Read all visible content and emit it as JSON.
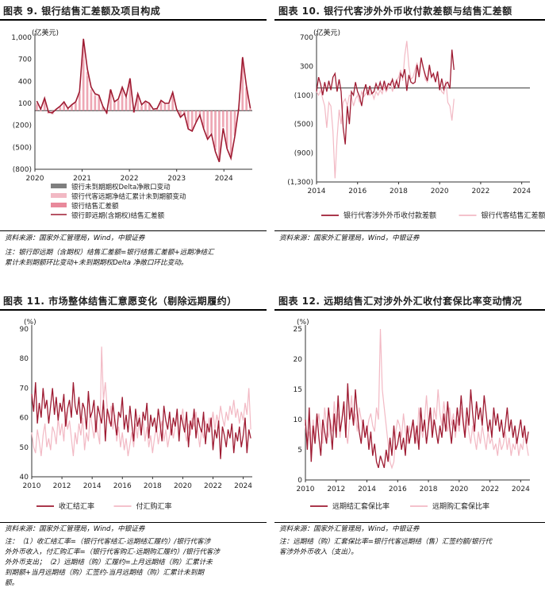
{
  "panels": {
    "p9": {
      "title": "图表 9. 银行结售汇差额及项目构成"
    },
    "p10": {
      "title": "图表 10. 银行代客涉外外币收付款差额与结售汇差额"
    },
    "p11": {
      "title": "图表 11. 市场整体结售汇意愿变化（剔除远期履约）"
    },
    "p12": {
      "title": "图表 12. 远期结售汇对涉外外汇收付套保比率变动情况"
    }
  },
  "notes": {
    "p9_source": "资料来源：国家外汇管理局，Wind，中银证券",
    "p9_note_1": "注：银行即远期（含期权）结售汇差额=银行结售汇差额+远期净结汇",
    "p9_note_2": "累计未到期额环比变动+未到期期权Delta 净敞口环比变动。",
    "p10_source": "资料来源：国家外汇管理局，Wind，中银证券",
    "p11_source": "资料来源：国家外汇管理局，Wind，中银证券",
    "p11_note_1": "注：（1）收汇结汇率=（银行代客结汇-远期结汇履约）/银行代客涉",
    "p11_note_2": "外外币收入，付汇购汇率=（银行代客购汇-远期购汇履约）/银行代客涉",
    "p11_note_3": "外外币支出；（2）远期结（购）汇履约=上月远期结（购）汇累计未",
    "p11_note_4": "到期额+当月远期结（购）汇签约-当月远期结（购）汇累计未到期",
    "p11_note_5": "额。",
    "p12_source": "资料来源：国家外汇管理局，Wind，中银证券",
    "p12_note_1": "注：远期结（购）汇套保比率=银行代客远期结（售）汇签约额/银行代",
    "p12_note_2": "客涉外外币收入（支出）。"
  },
  "chart_data": [
    {
      "id": "chart9",
      "type": "bar",
      "unit": "(亿美元)",
      "ylim": [
        -800,
        1000
      ],
      "yticks": [
        "1,000",
        "700",
        "400",
        "100",
        "(200)",
        "(500)",
        "(800)"
      ],
      "ytick_values": [
        1000,
        700,
        400,
        100,
        -200,
        -500,
        -800
      ],
      "xticks": [
        "2020",
        "2021",
        "2022",
        "2023",
        "2024"
      ],
      "xtick_values": [
        2020,
        2021,
        2022,
        2023,
        2024
      ],
      "x_start": 2020.0,
      "x_end": 2024.6,
      "legend": [
        "银行未到期期权Delta净敞口变动",
        "银行代客远期净结汇累计未到期额变动",
        "银行结售汇差额",
        "银行即远期(含期权)结售汇差额"
      ],
      "colors": {
        "delta": "#7f7f7f",
        "forward": "#f2b9c4",
        "spot": "#e8899b",
        "total": "#9e1b32"
      },
      "series": {
        "total": [
          130,
          20,
          170,
          -20,
          -30,
          20,
          60,
          120,
          30,
          80,
          120,
          260,
          980,
          570,
          320,
          230,
          210,
          60,
          -30,
          290,
          120,
          160,
          320,
          190,
          440,
          -20,
          230,
          80,
          130,
          100,
          20,
          30,
          140,
          100,
          100,
          250,
          20,
          -90,
          -40,
          -250,
          -280,
          -160,
          -60,
          -250,
          -390,
          -320,
          -560,
          -700,
          -240,
          -520,
          -650,
          -350,
          30,
          730,
          330,
          30
        ],
        "spot": [
          80,
          -10,
          150,
          -40,
          -50,
          10,
          40,
          100,
          20,
          70,
          100,
          230,
          700,
          470,
          250,
          200,
          190,
          50,
          -40,
          270,
          100,
          140,
          290,
          170,
          400,
          -30,
          200,
          60,
          110,
          90,
          10,
          20,
          120,
          90,
          80,
          220,
          10,
          -80,
          -60,
          -230,
          -260,
          -150,
          -80,
          -230,
          -360,
          -300,
          -500,
          -640,
          -220,
          -480,
          -600,
          -320,
          20,
          650,
          300,
          20
        ],
        "forward": [
          20,
          10,
          10,
          10,
          10,
          5,
          10,
          10,
          5,
          5,
          10,
          20,
          180,
          60,
          40,
          20,
          15,
          5,
          5,
          10,
          10,
          10,
          20,
          10,
          30,
          5,
          20,
          10,
          10,
          5,
          5,
          5,
          10,
          5,
          10,
          20,
          5,
          -5,
          10,
          -10,
          -10,
          -5,
          10,
          -10,
          -20,
          -10,
          -40,
          -40,
          -10,
          -30,
          -30,
          -20,
          5,
          60,
          20,
          5
        ],
        "delta": [
          0,
          0,
          0,
          0,
          0,
          0,
          0,
          0,
          0,
          0,
          0,
          0,
          10,
          0,
          0,
          0,
          0,
          0,
          0,
          0,
          0,
          0,
          0,
          0,
          0,
          0,
          0,
          0,
          0,
          0,
          0,
          0,
          0,
          0,
          0,
          0,
          0,
          0,
          0,
          0,
          0,
          0,
          0,
          0,
          0,
          0,
          0,
          0,
          0,
          0,
          0,
          0,
          0,
          0,
          0,
          0
        ]
      }
    },
    {
      "id": "chart10",
      "type": "line",
      "unit": "(亿美元)",
      "ylim": [
        -1300,
        700
      ],
      "yticks": [
        "700",
        "300",
        "(100)",
        "(500)",
        "(900)",
        "(1,300)"
      ],
      "ytick_values": [
        700,
        300,
        -100,
        -500,
        -900,
        -1300
      ],
      "xticks": [
        "2014",
        "2016",
        "2018",
        "2020",
        "2022",
        "2024"
      ],
      "xtick_values": [
        2014,
        2016,
        2018,
        2020,
        2022,
        2024
      ],
      "x_start": 2014.0,
      "x_end": 2024.4,
      "legend": [
        "银行代客涉外外币收付款差额",
        "银行代客结售汇差额"
      ],
      "colors": [
        "#9e1b32",
        "#f2b9c4"
      ],
      "series": [
        {
          "name": "银行代客涉外外币收付款差额",
          "step": 0.1,
          "values": [
            -50,
            150,
            50,
            -100,
            80,
            -50,
            100,
            -30,
            150,
            200,
            -50,
            120,
            -50,
            -550,
            -780,
            -250,
            -500,
            -50,
            -100,
            80,
            -50,
            -120,
            -250,
            -50,
            50,
            -100,
            30,
            -80,
            -50,
            60,
            -20,
            80,
            -30,
            100,
            -20,
            60,
            40,
            120,
            -10,
            100,
            0,
            200,
            150,
            260,
            -40,
            180,
            80,
            60,
            80,
            320,
            150,
            420,
            280,
            180,
            100,
            320,
            150,
            200,
            80,
            230,
            -30,
            130,
            -20,
            60,
            80,
            -10,
            530,
            250
          ]
        },
        {
          "name": "银行代客结售汇差额",
          "step": 0.1,
          "values": [
            -50,
            -100,
            -30,
            -150,
            -250,
            -550,
            -200,
            -250,
            -600,
            -1250,
            -700,
            -300,
            -500,
            -200,
            -150,
            -250,
            -100,
            -120,
            -250,
            -150,
            -100,
            -200,
            -50,
            -120,
            -80,
            -30,
            -100,
            -50,
            -150,
            -50,
            -100,
            -30,
            -80,
            50,
            -50,
            0,
            80,
            -50,
            60,
            100,
            150,
            250,
            100,
            450,
            650,
            300,
            120,
            150,
            250,
            350,
            200,
            400,
            300,
            120,
            80,
            250,
            200,
            150,
            100,
            200,
            50,
            -50,
            -80,
            100,
            -200,
            -250,
            -450,
            -150
          ]
        }
      ]
    },
    {
      "id": "chart11",
      "type": "line",
      "unit": "(%)",
      "ylim": [
        40,
        90
      ],
      "yticks": [
        "90",
        "80",
        "70",
        "60",
        "50",
        "40"
      ],
      "ytick_values": [
        90,
        80,
        70,
        60,
        50,
        40
      ],
      "xticks": [
        "2010",
        "2012",
        "2014",
        "2016",
        "2018",
        "2020",
        "2022",
        "2024"
      ],
      "xtick_values": [
        2010,
        2012,
        2014,
        2016,
        2018,
        2020,
        2022,
        2024
      ],
      "x_start": 2010.0,
      "x_end": 2024.6,
      "legend": [
        "收汇结汇率",
        "付汇购汇率"
      ],
      "colors": [
        "#9e1b32",
        "#f2b9c4"
      ],
      "series": [
        {
          "name": "收汇结汇率",
          "step": 0.125,
          "values": [
            68,
            62,
            72,
            58,
            65,
            60,
            70,
            63,
            66,
            58,
            64,
            70,
            61,
            67,
            59,
            65,
            62,
            68,
            57,
            63,
            66,
            60,
            72,
            64,
            61,
            67,
            58,
            65,
            63,
            56,
            69,
            60,
            62,
            66,
            55,
            64,
            61,
            58,
            66,
            52,
            63,
            60,
            57,
            65,
            59,
            54,
            62,
            60,
            67,
            56,
            61,
            55,
            64,
            58,
            52,
            63,
            57,
            60,
            54,
            62,
            59,
            65,
            53,
            61,
            57,
            60,
            55,
            63,
            58,
            52,
            64,
            59,
            56,
            62,
            54,
            60,
            57,
            63,
            52,
            61,
            58,
            55,
            62,
            50,
            59,
            56,
            63,
            53,
            60,
            57,
            55,
            62,
            51,
            58,
            55,
            60,
            49,
            56,
            53,
            59,
            46,
            57,
            54,
            50,
            56,
            53,
            58,
            48,
            55,
            52,
            57,
            50,
            54,
            60,
            48,
            56,
            53,
            50,
            55,
            62,
            52
          ]
        },
        {
          "name": "付汇购汇率",
          "step": 0.125,
          "values": [
            55,
            50,
            48,
            56,
            52,
            47,
            54,
            58,
            50,
            53,
            49,
            57,
            55,
            51,
            60,
            54,
            58,
            52,
            62,
            56,
            59,
            53,
            47,
            55,
            51,
            58,
            54,
            60,
            49,
            55,
            52,
            62,
            57,
            53,
            59,
            55,
            51,
            84,
            66,
            72,
            63,
            58,
            64,
            56,
            61,
            52,
            57,
            50,
            55,
            49,
            53,
            47,
            51,
            55,
            50,
            58,
            53,
            61,
            55,
            59,
            52,
            57,
            50,
            54,
            48,
            53,
            57,
            51,
            55,
            59,
            52,
            56,
            50,
            54,
            58,
            53,
            57,
            61,
            54,
            59,
            63,
            56,
            52,
            58,
            54,
            60,
            57,
            62,
            55,
            50,
            56,
            53,
            59,
            55,
            60,
            57,
            62,
            56,
            61,
            58,
            64,
            60,
            57,
            62,
            59,
            64,
            61,
            66,
            60,
            63,
            58,
            62,
            59,
            65,
            61,
            70,
            56,
            62,
            64,
            60,
            58
          ]
        }
      ]
    },
    {
      "id": "chart12",
      "type": "line",
      "unit": "(%)",
      "ylim": [
        0,
        25
      ],
      "yticks": [
        "25",
        "20",
        "15",
        "10",
        "5",
        "0"
      ],
      "ytick_values": [
        25,
        20,
        15,
        10,
        5,
        0
      ],
      "xticks": [
        "2010",
        "2012",
        "2014",
        "2016",
        "2018",
        "2020",
        "2022",
        "2024"
      ],
      "xtick_values": [
        2010,
        2012,
        2014,
        2016,
        2018,
        2020,
        2022,
        2024
      ],
      "x_start": 2010.0,
      "x_end": 2024.6,
      "legend": [
        "远期结汇套保比率",
        "远期购汇套保比率"
      ],
      "colors": [
        "#9e1b32",
        "#f2b9c4"
      ],
      "series": [
        {
          "name": "远期结汇套保比率",
          "step": 0.125,
          "values": [
            10,
            5,
            12,
            3,
            9,
            6,
            11,
            7,
            4,
            10,
            8,
            6,
            12,
            9,
            5,
            11,
            7,
            14,
            8,
            10,
            13,
            7,
            16,
            10,
            12,
            9,
            15,
            11,
            8,
            6,
            10,
            7,
            9,
            5,
            8,
            4,
            6,
            3,
            2,
            4,
            3,
            2,
            5,
            3,
            7,
            4,
            9,
            5,
            6,
            8,
            5,
            7,
            4,
            9,
            6,
            8,
            10,
            6,
            9,
            5,
            12,
            8,
            10,
            6,
            9,
            12,
            7,
            10,
            8,
            6,
            9,
            7,
            11,
            8,
            13,
            9,
            6,
            10,
            8,
            12,
            9,
            14,
            10,
            7,
            12,
            9,
            15,
            11,
            8,
            13,
            10,
            12,
            9,
            14,
            11,
            8,
            10,
            7,
            12,
            9,
            11,
            8,
            10,
            7,
            9,
            12,
            8,
            10,
            7,
            9,
            6,
            8,
            10,
            7,
            9,
            6,
            8,
            11,
            7,
            12,
            8
          ]
        },
        {
          "name": "远期购汇套保比率",
          "step": 0.125,
          "values": [
            9,
            6,
            8,
            5,
            10,
            7,
            9,
            11,
            8,
            6,
            12,
            9,
            7,
            10,
            8,
            13,
            9,
            11,
            7,
            10,
            12,
            8,
            6,
            10,
            14,
            9,
            11,
            8,
            12,
            10,
            9,
            7,
            8,
            10,
            11,
            9,
            8,
            12,
            10,
            25,
            15,
            12,
            9,
            6,
            3,
            2,
            3,
            8,
            10,
            9,
            7,
            11,
            8,
            6,
            9,
            7,
            10,
            8,
            6,
            12,
            9,
            7,
            10,
            14,
            9,
            11,
            8,
            12,
            10,
            15,
            11,
            9,
            13,
            10,
            8,
            12,
            9,
            11,
            7,
            10,
            8,
            12,
            9,
            7,
            10,
            8,
            6,
            9,
            7,
            5,
            8,
            6,
            9,
            7,
            5,
            8,
            6,
            7,
            5,
            6,
            4,
            7,
            5,
            6,
            8,
            5,
            7,
            4,
            6,
            5,
            7,
            4,
            6,
            5,
            8,
            6,
            4,
            7,
            5,
            6,
            5
          ]
        }
      ]
    }
  ]
}
